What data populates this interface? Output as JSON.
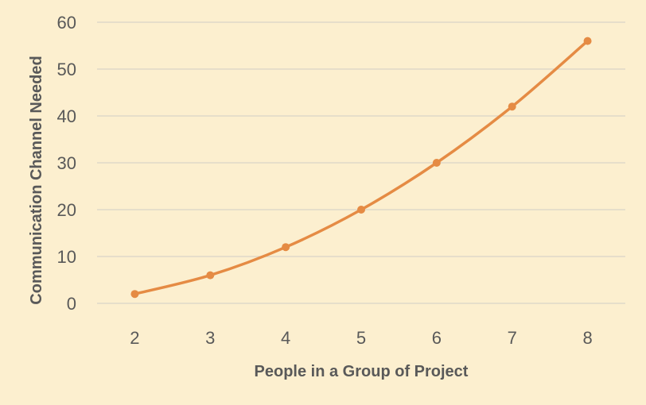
{
  "chart_data": {
    "type": "line",
    "categories": [
      2,
      3,
      4,
      5,
      6,
      7,
      8
    ],
    "series": [
      {
        "values": [
          2,
          6,
          12,
          20,
          30,
          42,
          56
        ],
        "color": "#E58B44"
      }
    ],
    "xlabel": "People in a Group of Project",
    "ylabel": "Communication Channel Needed",
    "ylim": [
      0,
      60
    ],
    "yticks": [
      0,
      10,
      20,
      30,
      40,
      50,
      60
    ],
    "grid": true,
    "background": "#FCEFCF"
  }
}
